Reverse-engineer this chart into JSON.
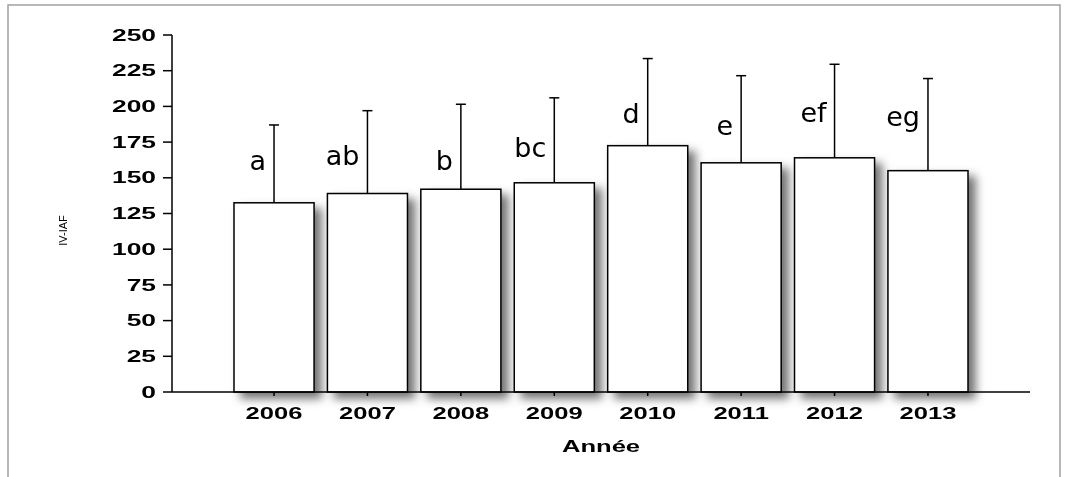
{
  "chart_data": {
    "type": "bar",
    "xlabel": "Année",
    "ylabel": "IV-IAF",
    "categories": [
      "2006",
      "2007",
      "2008",
      "2009",
      "2010",
      "2011",
      "2012",
      "2013"
    ],
    "values": [
      132.5,
      139,
      142,
      146.5,
      172.5,
      160.5,
      164,
      155
    ],
    "errors": [
      [
        132.5,
        187
      ],
      [
        139,
        197
      ],
      [
        142,
        201.5
      ],
      [
        146.5,
        206
      ],
      [
        172.5,
        233.5
      ],
      [
        160.5,
        221.5
      ],
      [
        164,
        229.5
      ],
      [
        155,
        219.5
      ]
    ],
    "color": "#ffffff",
    "ylim": [
      0,
      250
    ],
    "yticks": [
      0,
      25,
      50,
      75,
      100,
      125,
      150,
      175,
      200,
      225,
      250
    ],
    "annotations": [
      {
        "text": "a",
        "x": "2006",
        "y": 155.5
      },
      {
        "text": "ab",
        "x": "2007",
        "y": 159
      },
      {
        "text": "b",
        "x": "2008",
        "y": 155.5
      },
      {
        "text": "bc",
        "x": "2009",
        "y": 164.5
      },
      {
        "text": "d",
        "x": "2010",
        "y": 188.5
      },
      {
        "text": "e",
        "x": "2011",
        "y": 180
      },
      {
        "text": "ef",
        "x": "2012",
        "y": 189
      },
      {
        "text": "eg",
        "x": "2013",
        "y": 186
      }
    ]
  }
}
